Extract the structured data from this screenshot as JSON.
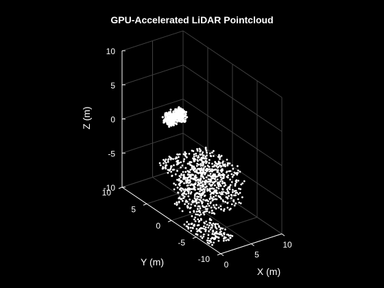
{
  "chart_data": {
    "type": "scatter",
    "title": "GPU-Accelerated LiDAR Pointcloud",
    "xlabel": "X (m)",
    "ylabel": "Y (m)",
    "zlabel": "Z (m)",
    "xlim": [
      0,
      10
    ],
    "ylim": [
      -10,
      10
    ],
    "zlim": [
      -10,
      10
    ],
    "xticks": [
      "0",
      "5",
      "10"
    ],
    "yticks": [
      "-10",
      "-5",
      "0",
      "5",
      "10"
    ],
    "zticks": [
      "-10",
      "-5",
      "0",
      "5",
      "10"
    ],
    "grid": true,
    "background": "#000000",
    "axis_color": "#ffffff",
    "grid_color": "#404040",
    "point_color": "#ffffff",
    "view": "3d",
    "clusters": [
      {
        "name": "overhead-sign",
        "x": [
          4.5,
          7.5
        ],
        "y": [
          6.0,
          7.5
        ],
        "z": [
          -0.6,
          0.9
        ],
        "count": 320,
        "pattern": "dense"
      },
      {
        "name": "road-edge-upper",
        "x": [
          1.0,
          9.5
        ],
        "y": [
          -3.0,
          5.0
        ],
        "z": [
          -4.4,
          -3.9
        ],
        "count": 260,
        "pattern": "streak"
      },
      {
        "name": "ground-returns",
        "x": [
          0.5,
          9.5
        ],
        "y": [
          -8.0,
          6.0
        ],
        "z": [
          -8.0,
          -5.0
        ],
        "count": 520,
        "pattern": "rings"
      },
      {
        "name": "road-edge-lower",
        "x": [
          0.0,
          4.0
        ],
        "y": [
          -8.0,
          -2.0
        ],
        "z": [
          -10.0,
          -9.4
        ],
        "count": 140,
        "pattern": "streak"
      }
    ]
  }
}
